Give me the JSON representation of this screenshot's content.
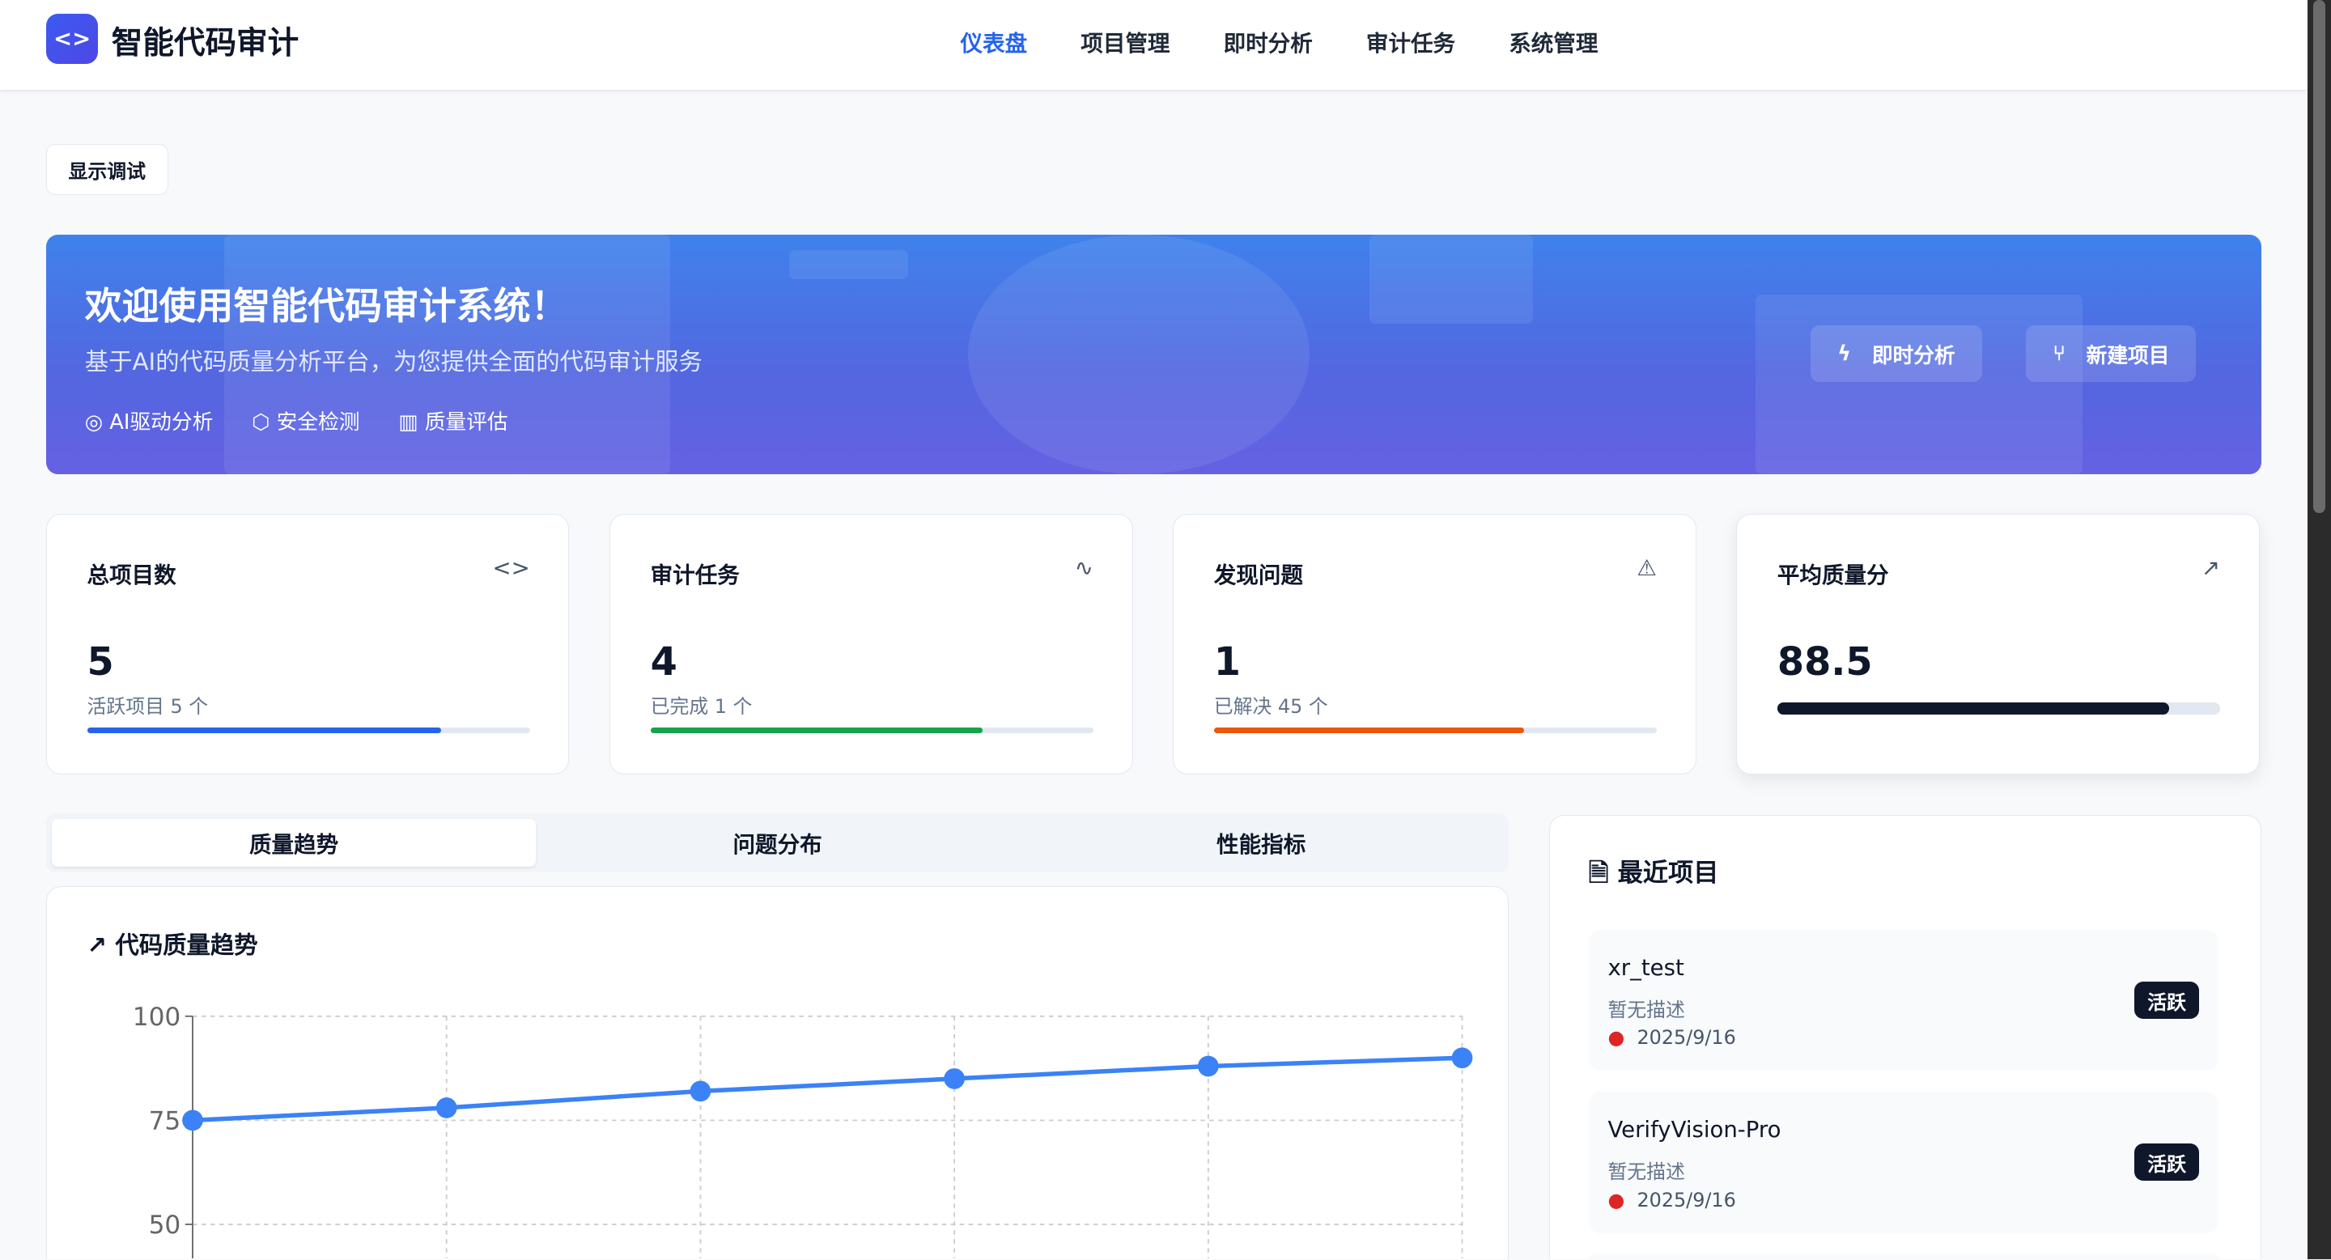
{
  "app": {
    "title": "智能代码审计",
    "logo_icon": "code-brackets-icon"
  },
  "nav": {
    "items": [
      "仪表盘",
      "项目管理",
      "即时分析",
      "审计任务",
      "系统管理"
    ],
    "active": "仪表盘",
    "active_color": "#2563eb"
  },
  "debug_button": "显示调试",
  "hero": {
    "title": "欢迎使用智能代码审计系统！",
    "subtitle": "基于AI的代码质量分析平台，为您提供全面的代码审计服务",
    "features": [
      {
        "icon": "target-icon",
        "label": "AI驱动分析"
      },
      {
        "icon": "shield-icon",
        "label": "安全检测"
      },
      {
        "icon": "bar-chart-icon",
        "label": "质量评估"
      }
    ],
    "buttons": [
      {
        "icon": "lightning-icon",
        "label": "即时分析"
      },
      {
        "icon": "git-branch-icon",
        "label": "新建项目"
      }
    ]
  },
  "stats": [
    {
      "title": "总项目数",
      "icon": "code-icon",
      "value": "5",
      "sub": "活跃项目 5 个",
      "progress": 0.8,
      "color": "#2563eb"
    },
    {
      "title": "审计任务",
      "icon": "activity-icon",
      "value": "4",
      "sub": "已完成 1 个",
      "progress": 0.75,
      "color": "#16a34a"
    },
    {
      "title": "发现问题",
      "icon": "alert-triangle-icon",
      "value": "1",
      "sub": "已解决 45 个",
      "progress": 0.7,
      "color": "#ea580c"
    },
    {
      "title": "平均质量分",
      "icon": "trending-up-icon",
      "value": "88.5",
      "sub": "",
      "progress": 0.885,
      "color": "#0f172a"
    }
  ],
  "tabs": [
    "质量趋势",
    "问题分布",
    "性能指标"
  ],
  "chart_card_title": "代码质量趋势",
  "chart_data": {
    "type": "line",
    "title": "代码质量趋势",
    "y_ticks": [
      "100",
      "75",
      "50"
    ],
    "ylim": [
      0,
      100
    ],
    "grid": true,
    "series": [
      {
        "values": [
          75,
          78,
          82,
          85,
          88,
          90
        ],
        "color": "#3b82f6"
      }
    ]
  },
  "recent": {
    "title": "最近项目",
    "icon": "file-text-icon",
    "items": [
      {
        "name": "xr_test",
        "desc": "暂无描述",
        "date": "2025/9/16",
        "badge": "活跃"
      },
      {
        "name": "VerifyVision-Pro",
        "desc": "暂无描述",
        "date": "2025/9/16",
        "badge": "活跃"
      }
    ]
  }
}
